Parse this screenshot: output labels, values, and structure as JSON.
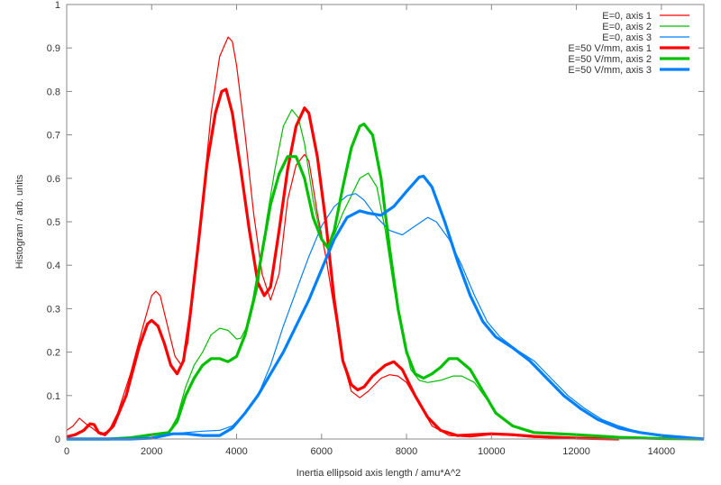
{
  "chart_data": {
    "type": "line",
    "title": "",
    "xlabel": "Inertia ellipsoid axis length / amu*A^2",
    "ylabel": "Histogram / arb. units",
    "xlim": [
      0,
      15000
    ],
    "ylim": [
      0,
      1
    ],
    "xticks": [
      0,
      2000,
      4000,
      6000,
      8000,
      10000,
      12000,
      14000
    ],
    "yticks": [
      0,
      0.1,
      0.2,
      0.3,
      0.4,
      0.5,
      0.6,
      0.7,
      0.8,
      0.9,
      1
    ],
    "xtick_labels": [
      "0",
      "2000",
      "4000",
      "6000",
      "8000",
      "10000",
      "12000",
      "14000"
    ],
    "ytick_labels": [
      "0",
      "0.1",
      "0.2",
      "0.3",
      "0.4",
      "0.5",
      "0.6",
      "0.7",
      "0.8",
      "0.9",
      "1"
    ],
    "grid": false,
    "legend_position": "top-right",
    "series": [
      {
        "name": "E=0, axis 1",
        "color": "#ff0000",
        "width": "thin",
        "points": [
          [
            0,
            0.02
          ],
          [
            150,
            0.03
          ],
          [
            300,
            0.048
          ],
          [
            450,
            0.035
          ],
          [
            600,
            0.025
          ],
          [
            800,
            0.01
          ],
          [
            1000,
            0.02
          ],
          [
            1200,
            0.06
          ],
          [
            1500,
            0.15
          ],
          [
            1800,
            0.26
          ],
          [
            2000,
            0.33
          ],
          [
            2100,
            0.34
          ],
          [
            2200,
            0.33
          ],
          [
            2400,
            0.25
          ],
          [
            2550,
            0.19
          ],
          [
            2700,
            0.17
          ],
          [
            2850,
            0.22
          ],
          [
            3000,
            0.35
          ],
          [
            3200,
            0.55
          ],
          [
            3400,
            0.75
          ],
          [
            3600,
            0.88
          ],
          [
            3800,
            0.925
          ],
          [
            3900,
            0.915
          ],
          [
            4000,
            0.86
          ],
          [
            4200,
            0.7
          ],
          [
            4400,
            0.52
          ],
          [
            4600,
            0.38
          ],
          [
            4800,
            0.32
          ],
          [
            5000,
            0.38
          ],
          [
            5200,
            0.55
          ],
          [
            5400,
            0.63
          ],
          [
            5600,
            0.655
          ],
          [
            5700,
            0.64
          ],
          [
            5900,
            0.52
          ],
          [
            6100,
            0.42
          ],
          [
            6300,
            0.3
          ],
          [
            6500,
            0.18
          ],
          [
            6700,
            0.11
          ],
          [
            6900,
            0.095
          ],
          [
            7100,
            0.11
          ],
          [
            7400,
            0.14
          ],
          [
            7600,
            0.148
          ],
          [
            7800,
            0.145
          ],
          [
            8000,
            0.13
          ],
          [
            8300,
            0.08
          ],
          [
            8600,
            0.03
          ],
          [
            9000,
            0.008
          ],
          [
            9500,
            0.005
          ],
          [
            10000,
            0.01
          ],
          [
            10500,
            0.008
          ],
          [
            11000,
            0.004
          ],
          [
            12000,
            0.002
          ],
          [
            13000,
            0
          ]
        ]
      },
      {
        "name": "E=0, axis 2",
        "color": "#00c000",
        "width": "thin",
        "points": [
          [
            0,
            0
          ],
          [
            1000,
            0
          ],
          [
            1500,
            0.003
          ],
          [
            2000,
            0.01
          ],
          [
            2400,
            0.015
          ],
          [
            2600,
            0.05
          ],
          [
            2800,
            0.12
          ],
          [
            3000,
            0.17
          ],
          [
            3200,
            0.2
          ],
          [
            3400,
            0.24
          ],
          [
            3600,
            0.255
          ],
          [
            3800,
            0.25
          ],
          [
            4000,
            0.23
          ],
          [
            4100,
            0.232
          ],
          [
            4300,
            0.27
          ],
          [
            4500,
            0.35
          ],
          [
            4700,
            0.5
          ],
          [
            4900,
            0.62
          ],
          [
            5100,
            0.72
          ],
          [
            5300,
            0.758
          ],
          [
            5450,
            0.74
          ],
          [
            5600,
            0.68
          ],
          [
            5800,
            0.55
          ],
          [
            6000,
            0.46
          ],
          [
            6100,
            0.445
          ],
          [
            6300,
            0.47
          ],
          [
            6500,
            0.52
          ],
          [
            6700,
            0.56
          ],
          [
            6900,
            0.6
          ],
          [
            7100,
            0.612
          ],
          [
            7300,
            0.58
          ],
          [
            7500,
            0.48
          ],
          [
            7700,
            0.35
          ],
          [
            7900,
            0.24
          ],
          [
            8100,
            0.16
          ],
          [
            8300,
            0.135
          ],
          [
            8500,
            0.13
          ],
          [
            8800,
            0.135
          ],
          [
            9100,
            0.145
          ],
          [
            9300,
            0.145
          ],
          [
            9600,
            0.13
          ],
          [
            9900,
            0.09
          ],
          [
            10200,
            0.05
          ],
          [
            10500,
            0.03
          ],
          [
            11000,
            0.015
          ],
          [
            12000,
            0.01
          ],
          [
            13000,
            0.003
          ],
          [
            14000,
            0
          ],
          [
            15000,
            0
          ]
        ]
      },
      {
        "name": "E=0, axis 3",
        "color": "#0080ff",
        "width": "thin",
        "points": [
          [
            0,
            0
          ],
          [
            1500,
            0
          ],
          [
            2000,
            0.002
          ],
          [
            2500,
            0.012
          ],
          [
            2800,
            0.015
          ],
          [
            3200,
            0.018
          ],
          [
            3600,
            0.02
          ],
          [
            3900,
            0.03
          ],
          [
            4200,
            0.06
          ],
          [
            4500,
            0.1
          ],
          [
            4800,
            0.17
          ],
          [
            5100,
            0.26
          ],
          [
            5400,
            0.34
          ],
          [
            5700,
            0.42
          ],
          [
            6000,
            0.49
          ],
          [
            6300,
            0.535
          ],
          [
            6600,
            0.56
          ],
          [
            6800,
            0.565
          ],
          [
            7000,
            0.55
          ],
          [
            7300,
            0.51
          ],
          [
            7600,
            0.48
          ],
          [
            7900,
            0.47
          ],
          [
            8200,
            0.49
          ],
          [
            8500,
            0.51
          ],
          [
            8700,
            0.5
          ],
          [
            9000,
            0.46
          ],
          [
            9300,
            0.4
          ],
          [
            9600,
            0.33
          ],
          [
            9900,
            0.27
          ],
          [
            10200,
            0.235
          ],
          [
            10600,
            0.205
          ],
          [
            11000,
            0.18
          ],
          [
            11400,
            0.14
          ],
          [
            11800,
            0.1
          ],
          [
            12200,
            0.07
          ],
          [
            12600,
            0.045
          ],
          [
            13000,
            0.03
          ],
          [
            13500,
            0.015
          ],
          [
            14000,
            0.008
          ],
          [
            15000,
            0
          ]
        ]
      },
      {
        "name": "E=50 V/mm, axis 1",
        "color": "#ff0000",
        "width": "thick",
        "points": [
          [
            0,
            0.005
          ],
          [
            200,
            0.01
          ],
          [
            400,
            0.02
          ],
          [
            550,
            0.035
          ],
          [
            650,
            0.033
          ],
          [
            750,
            0.015
          ],
          [
            900,
            0.01
          ],
          [
            1100,
            0.03
          ],
          [
            1400,
            0.1
          ],
          [
            1700,
            0.21
          ],
          [
            1900,
            0.265
          ],
          [
            2000,
            0.273
          ],
          [
            2150,
            0.26
          ],
          [
            2300,
            0.22
          ],
          [
            2450,
            0.17
          ],
          [
            2600,
            0.15
          ],
          [
            2750,
            0.18
          ],
          [
            2900,
            0.28
          ],
          [
            3100,
            0.45
          ],
          [
            3300,
            0.63
          ],
          [
            3500,
            0.75
          ],
          [
            3650,
            0.8
          ],
          [
            3750,
            0.805
          ],
          [
            3900,
            0.75
          ],
          [
            4100,
            0.62
          ],
          [
            4300,
            0.48
          ],
          [
            4500,
            0.36
          ],
          [
            4650,
            0.33
          ],
          [
            4800,
            0.35
          ],
          [
            5000,
            0.48
          ],
          [
            5200,
            0.62
          ],
          [
            5400,
            0.72
          ],
          [
            5600,
            0.762
          ],
          [
            5700,
            0.75
          ],
          [
            5900,
            0.65
          ],
          [
            6100,
            0.5
          ],
          [
            6300,
            0.32
          ],
          [
            6500,
            0.18
          ],
          [
            6700,
            0.125
          ],
          [
            6850,
            0.113
          ],
          [
            7000,
            0.12
          ],
          [
            7200,
            0.145
          ],
          [
            7500,
            0.17
          ],
          [
            7700,
            0.178
          ],
          [
            7900,
            0.16
          ],
          [
            8200,
            0.1
          ],
          [
            8500,
            0.05
          ],
          [
            8800,
            0.02
          ],
          [
            9200,
            0.008
          ],
          [
            10000,
            0.012
          ],
          [
            10500,
            0.01
          ],
          [
            11000,
            0.006
          ],
          [
            12000,
            0.002
          ],
          [
            13000,
            0
          ]
        ]
      },
      {
        "name": "E=50 V/mm, axis 2",
        "color": "#00c000",
        "width": "thick",
        "points": [
          [
            0,
            0
          ],
          [
            1000,
            0
          ],
          [
            1500,
            0.003
          ],
          [
            2000,
            0.01
          ],
          [
            2400,
            0.015
          ],
          [
            2600,
            0.04
          ],
          [
            2800,
            0.1
          ],
          [
            3000,
            0.14
          ],
          [
            3200,
            0.17
          ],
          [
            3400,
            0.185
          ],
          [
            3600,
            0.185
          ],
          [
            3800,
            0.178
          ],
          [
            4000,
            0.19
          ],
          [
            4200,
            0.24
          ],
          [
            4400,
            0.32
          ],
          [
            4600,
            0.43
          ],
          [
            4800,
            0.54
          ],
          [
            5000,
            0.61
          ],
          [
            5200,
            0.65
          ],
          [
            5400,
            0.65
          ],
          [
            5600,
            0.6
          ],
          [
            5800,
            0.51
          ],
          [
            6000,
            0.46
          ],
          [
            6150,
            0.44
          ],
          [
            6300,
            0.48
          ],
          [
            6500,
            0.58
          ],
          [
            6700,
            0.67
          ],
          [
            6900,
            0.72
          ],
          [
            7000,
            0.725
          ],
          [
            7200,
            0.7
          ],
          [
            7400,
            0.6
          ],
          [
            7600,
            0.44
          ],
          [
            7800,
            0.3
          ],
          [
            8000,
            0.2
          ],
          [
            8200,
            0.15
          ],
          [
            8400,
            0.14
          ],
          [
            8600,
            0.15
          ],
          [
            8800,
            0.165
          ],
          [
            9000,
            0.185
          ],
          [
            9200,
            0.185
          ],
          [
            9500,
            0.16
          ],
          [
            9800,
            0.11
          ],
          [
            10100,
            0.06
          ],
          [
            10500,
            0.03
          ],
          [
            11000,
            0.015
          ],
          [
            12000,
            0.01
          ],
          [
            13000,
            0.004
          ],
          [
            14000,
            0.001
          ],
          [
            15000,
            0
          ]
        ]
      },
      {
        "name": "E=50 V/mm, axis 3",
        "color": "#0080ff",
        "width": "thick",
        "points": [
          [
            0,
            0
          ],
          [
            1500,
            0
          ],
          [
            2000,
            0.002
          ],
          [
            2500,
            0.012
          ],
          [
            2800,
            0.012
          ],
          [
            3200,
            0.008
          ],
          [
            3600,
            0.008
          ],
          [
            3900,
            0.025
          ],
          [
            4200,
            0.06
          ],
          [
            4500,
            0.1
          ],
          [
            4800,
            0.15
          ],
          [
            5100,
            0.2
          ],
          [
            5400,
            0.26
          ],
          [
            5700,
            0.32
          ],
          [
            6000,
            0.39
          ],
          [
            6300,
            0.46
          ],
          [
            6600,
            0.51
          ],
          [
            6900,
            0.525
          ],
          [
            7100,
            0.52
          ],
          [
            7400,
            0.515
          ],
          [
            7700,
            0.535
          ],
          [
            8000,
            0.57
          ],
          [
            8300,
            0.603
          ],
          [
            8400,
            0.605
          ],
          [
            8600,
            0.58
          ],
          [
            8900,
            0.5
          ],
          [
            9200,
            0.41
          ],
          [
            9500,
            0.33
          ],
          [
            9800,
            0.27
          ],
          [
            10100,
            0.235
          ],
          [
            10500,
            0.21
          ],
          [
            10900,
            0.18
          ],
          [
            11300,
            0.14
          ],
          [
            11700,
            0.1
          ],
          [
            12100,
            0.07
          ],
          [
            12500,
            0.045
          ],
          [
            13000,
            0.025
          ],
          [
            13500,
            0.015
          ],
          [
            14000,
            0.008
          ],
          [
            15000,
            0
          ]
        ]
      }
    ]
  }
}
